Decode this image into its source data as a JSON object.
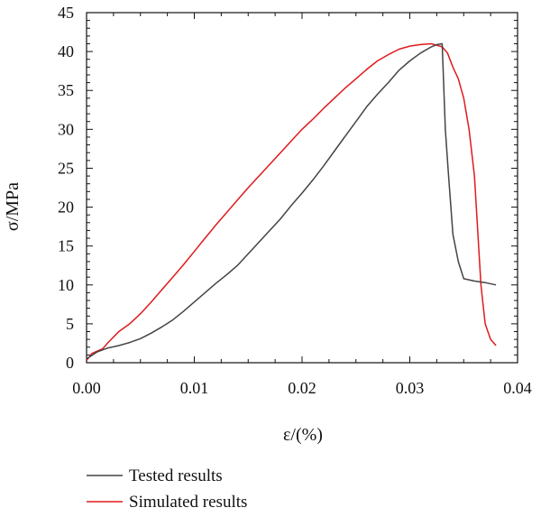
{
  "chart_data": {
    "type": "line",
    "xlabel": "ε/(%)",
    "ylabel": "σ/MPa",
    "xlim": [
      0.0,
      0.04
    ],
    "ylim": [
      0,
      45
    ],
    "x_ticks": [
      "0.00",
      "0.01",
      "0.02",
      "0.03",
      "0.04"
    ],
    "y_ticks": [
      "0",
      "5",
      "10",
      "15",
      "20",
      "25",
      "30",
      "35",
      "40",
      "45"
    ],
    "grid": false,
    "legend_position": "bottom-left, below plot",
    "series": [
      {
        "name": "Tested results",
        "color": "#444444",
        "x": [
          0.0,
          0.001,
          0.002,
          0.003,
          0.004,
          0.005,
          0.006,
          0.007,
          0.008,
          0.009,
          0.01,
          0.011,
          0.012,
          0.013,
          0.014,
          0.015,
          0.016,
          0.017,
          0.018,
          0.019,
          0.02,
          0.021,
          0.022,
          0.023,
          0.024,
          0.025,
          0.026,
          0.027,
          0.028,
          0.029,
          0.03,
          0.031,
          0.032,
          0.0325,
          0.033,
          0.0333,
          0.0336,
          0.034,
          0.0345,
          0.035,
          0.036,
          0.037,
          0.038
        ],
        "y": [
          0.5,
          1.4,
          1.9,
          2.2,
          2.6,
          3.1,
          3.8,
          4.6,
          5.5,
          6.6,
          7.8,
          9.0,
          10.2,
          11.3,
          12.5,
          14.0,
          15.5,
          17.0,
          18.5,
          20.2,
          21.8,
          23.5,
          25.3,
          27.2,
          29.1,
          31.0,
          32.9,
          34.5,
          36.0,
          37.6,
          38.8,
          39.8,
          40.6,
          40.9,
          41.0,
          30.0,
          24.0,
          16.5,
          13.0,
          10.8,
          10.5,
          10.3,
          10.0
        ]
      },
      {
        "name": "Simulated results",
        "color": "#e0191c",
        "x": [
          0.0,
          0.0005,
          0.001,
          0.0015,
          0.002,
          0.0025,
          0.003,
          0.004,
          0.005,
          0.006,
          0.007,
          0.008,
          0.009,
          0.01,
          0.011,
          0.012,
          0.013,
          0.014,
          0.015,
          0.016,
          0.017,
          0.018,
          0.019,
          0.02,
          0.021,
          0.022,
          0.023,
          0.024,
          0.025,
          0.026,
          0.027,
          0.028,
          0.029,
          0.03,
          0.031,
          0.032,
          0.0325,
          0.033,
          0.0335,
          0.034,
          0.0345,
          0.035,
          0.0355,
          0.036,
          0.0363,
          0.0366,
          0.037,
          0.0375,
          0.038
        ],
        "y": [
          0.3,
          1.2,
          1.5,
          1.8,
          2.6,
          3.3,
          4.0,
          5.0,
          6.3,
          7.8,
          9.4,
          11.0,
          12.6,
          14.3,
          16.0,
          17.7,
          19.3,
          20.9,
          22.5,
          24.0,
          25.5,
          27.0,
          28.5,
          30.0,
          31.3,
          32.7,
          34.0,
          35.3,
          36.5,
          37.7,
          38.8,
          39.6,
          40.3,
          40.7,
          40.9,
          41.0,
          40.8,
          40.6,
          39.8,
          38.0,
          36.5,
          34.0,
          30.0,
          24.0,
          17.0,
          10.0,
          5.0,
          3.0,
          2.2
        ]
      }
    ]
  }
}
